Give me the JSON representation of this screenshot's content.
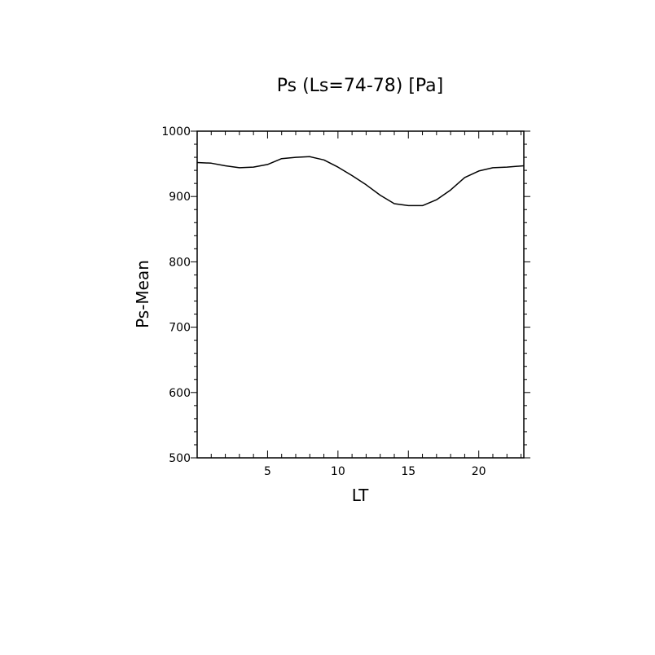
{
  "chart_data": {
    "type": "line",
    "title": "Ps (Ls=74-78) [Pa]",
    "xlabel": "LT",
    "ylabel": "Ps-Mean",
    "xlim": [
      0,
      23.2
    ],
    "ylim": [
      500,
      1000
    ],
    "x_ticks": [
      5,
      10,
      15,
      20
    ],
    "x_tick_labels": [
      "5",
      "10",
      "15",
      "20"
    ],
    "y_ticks": [
      500,
      600,
      700,
      800,
      900,
      1000
    ],
    "y_tick_labels": [
      "500",
      "600",
      "700",
      "800",
      "900",
      "1000"
    ],
    "grid": false,
    "series": [
      {
        "x": [
          0,
          1,
          2,
          3,
          4,
          5,
          6,
          7,
          8,
          9,
          10,
          11,
          12,
          13,
          14,
          15,
          16,
          17,
          18,
          19,
          20,
          21,
          22,
          23.2
        ],
        "y": [
          952,
          951,
          947,
          944,
          945,
          949,
          958,
          960,
          961,
          956,
          945,
          932,
          918,
          902,
          889,
          886,
          886,
          895,
          910,
          929,
          939,
          944,
          945,
          947
        ]
      }
    ]
  }
}
